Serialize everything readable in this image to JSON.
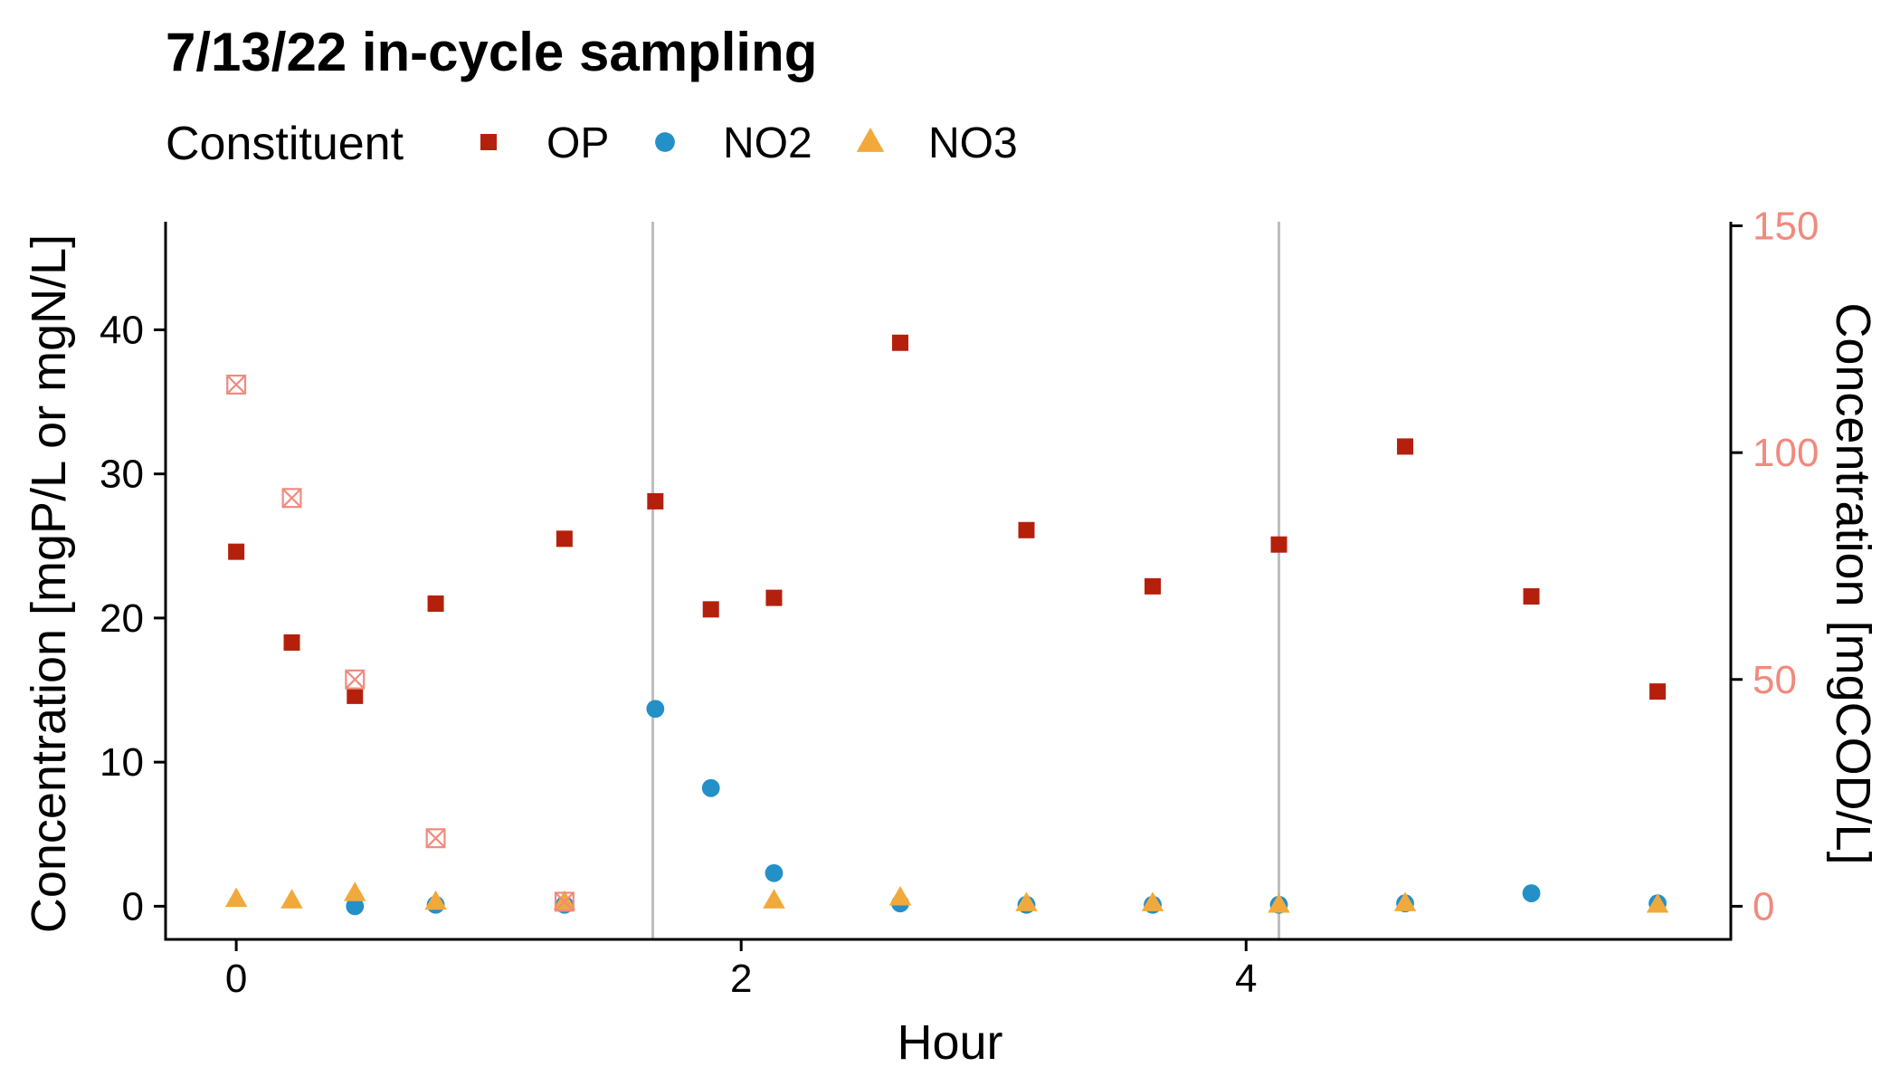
{
  "chart_data": {
    "type": "scatter",
    "title": "7/13/22 in-cycle sampling",
    "xlabel": "Hour",
    "ylabel": "Concentration [mgP/L or mgN/L]",
    "y2label": "Concentration [mgCOD/L]",
    "legend": {
      "title": "Constituent",
      "placement": "top-left",
      "entries": [
        {
          "name": "OP",
          "shape": "square",
          "color": "#B5200D"
        },
        {
          "name": "NO2",
          "shape": "circle",
          "color": "#2490C8"
        },
        {
          "name": "NO3",
          "shape": "triangle",
          "color": "#F2A93B"
        }
      ]
    },
    "xlim": [
      -0.28,
      5.92
    ],
    "ylim": [
      -2.3,
      47.5
    ],
    "y2lim": [
      -7.3,
      150.9
    ],
    "xticks": [
      0,
      2,
      4
    ],
    "yticks": [
      0,
      10,
      20,
      30,
      40
    ],
    "y2ticks": [
      0,
      50,
      100,
      150
    ],
    "secondary_color": "#F08A7E",
    "reference_lines_x": [
      1.65,
      4.13
    ],
    "reference_line_color": "#BEBEBE",
    "grid": false,
    "series": [
      {
        "name": "OP",
        "shape": "square",
        "color": "#B5200D",
        "axis": "left",
        "points": [
          {
            "x": 0.0,
            "y": 24.6
          },
          {
            "x": 0.22,
            "y": 18.3
          },
          {
            "x": 0.47,
            "y": 14.6
          },
          {
            "x": 0.79,
            "y": 21.0
          },
          {
            "x": 1.3,
            "y": 25.5
          },
          {
            "x": 1.66,
            "y": 28.1
          },
          {
            "x": 1.88,
            "y": 20.6
          },
          {
            "x": 2.13,
            "y": 21.4
          },
          {
            "x": 2.63,
            "y": 39.1
          },
          {
            "x": 3.13,
            "y": 26.1
          },
          {
            "x": 3.63,
            "y": 22.2
          },
          {
            "x": 4.13,
            "y": 25.1
          },
          {
            "x": 4.63,
            "y": 31.9
          },
          {
            "x": 5.13,
            "y": 21.5
          },
          {
            "x": 5.63,
            "y": 14.9
          }
        ]
      },
      {
        "name": "NO2",
        "shape": "circle",
        "color": "#2490C8",
        "axis": "left",
        "points": [
          {
            "x": 0.47,
            "y": 0.0
          },
          {
            "x": 0.79,
            "y": 0.1
          },
          {
            "x": 1.3,
            "y": 0.1
          },
          {
            "x": 1.66,
            "y": 13.7
          },
          {
            "x": 1.88,
            "y": 8.2
          },
          {
            "x": 2.13,
            "y": 2.3
          },
          {
            "x": 2.63,
            "y": 0.2
          },
          {
            "x": 3.13,
            "y": 0.1
          },
          {
            "x": 3.63,
            "y": 0.1
          },
          {
            "x": 4.13,
            "y": 0.1
          },
          {
            "x": 4.63,
            "y": 0.2
          },
          {
            "x": 5.13,
            "y": 0.9
          },
          {
            "x": 5.63,
            "y": 0.2
          }
        ]
      },
      {
        "name": "NO3",
        "shape": "triangle",
        "color": "#F2A93B",
        "axis": "left",
        "points": [
          {
            "x": 0.0,
            "y": 0.5
          },
          {
            "x": 0.22,
            "y": 0.4
          },
          {
            "x": 0.47,
            "y": 0.9
          },
          {
            "x": 0.79,
            "y": 0.3
          },
          {
            "x": 1.3,
            "y": 0.3
          },
          {
            "x": 2.13,
            "y": 0.4
          },
          {
            "x": 2.63,
            "y": 0.6
          },
          {
            "x": 3.13,
            "y": 0.2
          },
          {
            "x": 3.63,
            "y": 0.2
          },
          {
            "x": 4.13,
            "y": 0.1
          },
          {
            "x": 4.63,
            "y": 0.2
          },
          {
            "x": 5.63,
            "y": 0.1
          }
        ]
      },
      {
        "name": "",
        "shape": "square-cross",
        "color": "#F08A7E",
        "axis": "right",
        "points": [
          {
            "x": 0.0,
            "y": 115
          },
          {
            "x": 0.22,
            "y": 90
          },
          {
            "x": 0.47,
            "y": 50
          },
          {
            "x": 0.79,
            "y": 15
          },
          {
            "x": 1.3,
            "y": 1
          }
        ]
      }
    ]
  }
}
